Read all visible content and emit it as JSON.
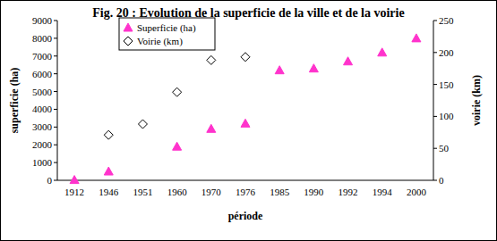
{
  "chart_data": {
    "type": "line",
    "title": "Fig. 20 : Evolution de la superficie de la ville et de la voirie",
    "x_label": "période",
    "y_label": "superficie (ha)",
    "y2_label": "voirie (km)",
    "categories": [
      "1912",
      "1946",
      "1951",
      "1960",
      "1970",
      "1976",
      "1985",
      "1990",
      "1992",
      "1994",
      "2000"
    ],
    "series": [
      {
        "name": "Superficie (ha)",
        "color": "#ff33cc",
        "marker": "triangle",
        "line_style": "none",
        "values": [
          20,
          500,
          null,
          1900,
          2900,
          3200,
          6200,
          6300,
          6700,
          7200,
          8000
        ]
      },
      {
        "name": "Voirie (km)",
        "color": "#000000",
        "marker": "diamond-open",
        "line_style": "none",
        "axis": "y2",
        "values": [
          null,
          71,
          88,
          138,
          188,
          193,
          null,
          null,
          null,
          null,
          null
        ]
      }
    ],
    "ylim": [
      0,
      9000
    ],
    "yticks": [
      0,
      1000,
      2000,
      3000,
      4000,
      5000,
      6000,
      7000,
      8000,
      9000
    ],
    "y2lim": [
      0,
      250
    ],
    "y2ticks": [
      0,
      50,
      100,
      150,
      200,
      250
    ],
    "grid": false,
    "legend": "top-left"
  }
}
